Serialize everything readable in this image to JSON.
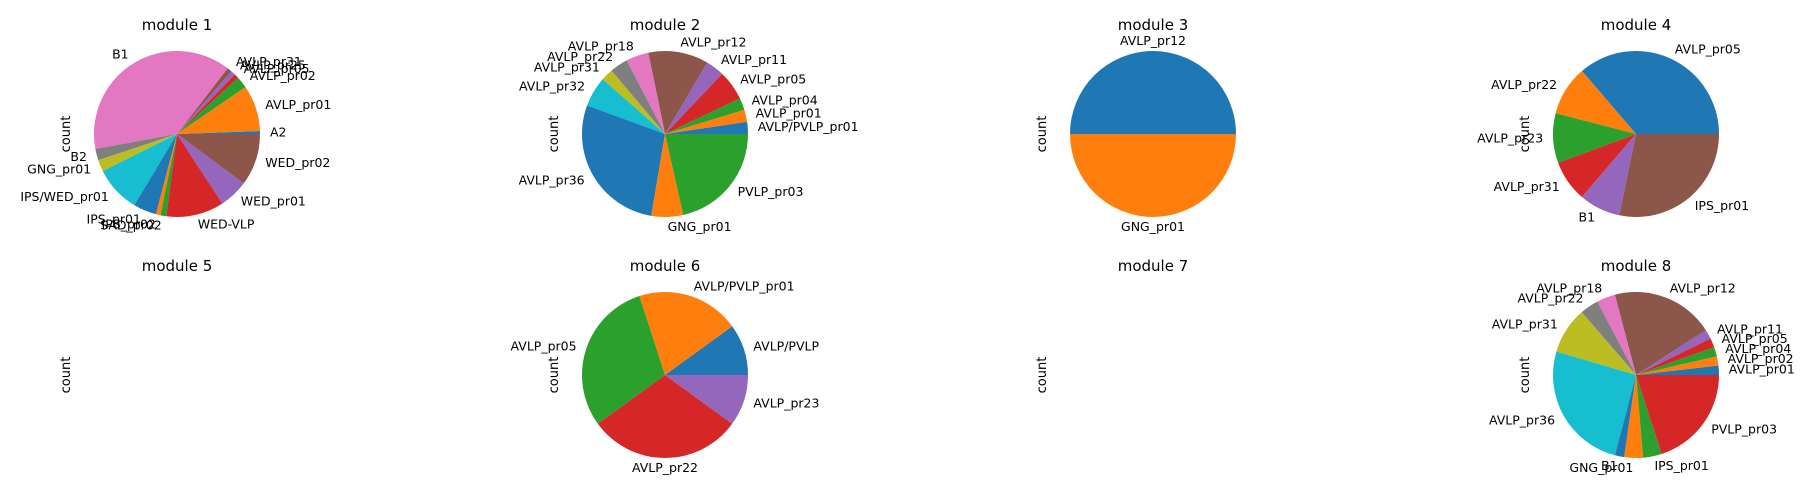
{
  "chart_data": [
    {
      "type": "pie",
      "title": "module 1",
      "ylabel": "count",
      "categories": [
        "A2",
        "AVLP_pr01",
        "AVLP_pr02",
        "AVLP_pr05",
        "AVLP_pr25",
        "AVLP_pr31",
        "B1",
        "B2",
        "GNG_pr01",
        "IPS/WED_pr01",
        "IPS_pr01",
        "IPS_pr02",
        "SAD_pr02",
        "WED-VLP",
        "WED_pr01",
        "WED_pr02"
      ],
      "values": [
        0.5,
        8,
        2,
        0.8,
        0.8,
        0.8,
        34,
        2,
        2,
        8,
        4,
        0.8,
        1,
        10,
        5,
        9
      ]
    },
    {
      "type": "pie",
      "title": "module 2",
      "ylabel": "count",
      "categories": [
        "AVLP/PVLP_pr01",
        "AVLP_pr01",
        "AVLP_pr04",
        "AVLP_pr05",
        "AVLP_pr11",
        "AVLP_pr12",
        "AVLP_pr18",
        "AVLP_pr22",
        "AVLP_pr31",
        "AVLP_pr32",
        "AVLP_pr36",
        "GNG_pr01",
        "PVLP_pr03"
      ],
      "values": [
        1.6,
        1.6,
        1.6,
        4,
        2.4,
        8,
        3,
        2.4,
        1.6,
        4,
        19,
        4.2,
        14.6
      ]
    },
    {
      "type": "pie",
      "title": "module 3",
      "ylabel": "count",
      "categories": [
        "AVLP_pr12",
        "GNG_pr01"
      ],
      "values": [
        1,
        1
      ]
    },
    {
      "type": "pie",
      "title": "module 4",
      "ylabel": "count",
      "categories": [
        "AVLP_pr05",
        "AVLP_pr22",
        "AVLP_pr23",
        "AVLP_pr31",
        "B1",
        "IPS_pr01"
      ],
      "values": [
        4.5,
        1.2,
        1.2,
        1,
        1,
        3.5
      ]
    },
    {
      "type": "pie",
      "title": "module 5",
      "ylabel": "count",
      "categories": [],
      "values": []
    },
    {
      "type": "pie",
      "title": "module 6",
      "ylabel": "count",
      "categories": [
        "AVLP/PVLP",
        "AVLP/PVLP_pr01",
        "AVLP_pr05",
        "AVLP_pr22",
        "AVLP_pr23"
      ],
      "values": [
        1,
        2,
        3,
        3,
        1
      ]
    },
    {
      "type": "pie",
      "title": "module 7",
      "ylabel": "count",
      "categories": [],
      "values": []
    },
    {
      "type": "pie",
      "title": "module 8",
      "ylabel": "count",
      "categories": [
        "AVLP_pr01",
        "AVLP_pr02",
        "AVLP_pr04",
        "AVLP_pr05",
        "AVLP_pr11",
        "AVLP_pr12",
        "AVLP_pr18",
        "AVLP_pr22",
        "AVLP_pr31",
        "AVLP_pr36",
        "B1",
        "GNG_pr01",
        "IPS_pr01",
        "PVLP_pr03"
      ],
      "values": [
        1,
        1,
        1,
        1,
        1,
        11,
        2,
        2,
        5,
        14,
        1,
        2,
        2,
        11
      ]
    }
  ]
}
